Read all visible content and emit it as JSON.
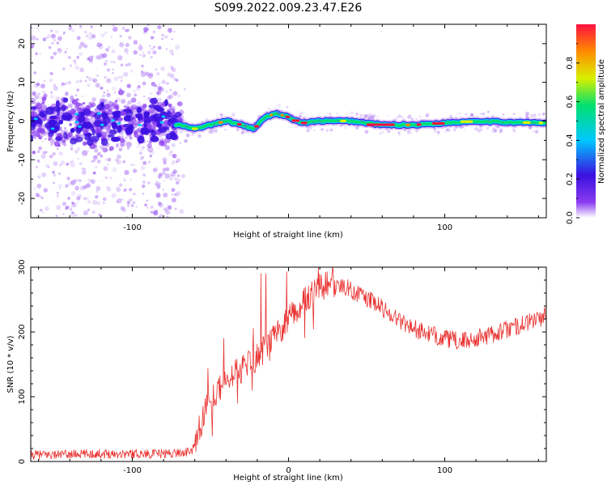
{
  "title": "S099.2022.009.23.47.E26",
  "colors": {
    "snr_line": "#e8312f",
    "noise_purple": "#8a3cf0",
    "blob_blue": "#3b10e0",
    "axis": "#000000"
  },
  "chart_data": [
    {
      "type": "heatmap",
      "xlabel": "Height of straight line (km)",
      "ylabel": "Frequency (Hz)",
      "xlim": [
        -165,
        165
      ],
      "ylim": [
        -25,
        25
      ],
      "xticks": [
        -100,
        0,
        100
      ],
      "xtick_labels": [
        "-100",
        "",
        "100"
      ],
      "yticks": [
        -20,
        -10,
        0,
        10,
        20
      ],
      "ytick_labels": [
        "-20",
        "-10",
        "0",
        "10",
        "20"
      ],
      "colorscale": [
        "#8a3cf0",
        "#3b10e0",
        "#00c8ff",
        "#00e070",
        "#d8f000",
        "#ff8c00",
        "#ff1040"
      ],
      "colorbar": {
        "label": "Normalized spectral amplitude",
        "range": [
          0,
          1
        ],
        "ticks": [
          0.0,
          0.2,
          0.4,
          0.6,
          0.8
        ],
        "tick_labels": [
          "0.0",
          "0.2",
          "0.4",
          "0.6",
          "0.8"
        ]
      },
      "ridge": {
        "x": [
          -70,
          -60,
          -50,
          -40,
          -30,
          -22,
          -15,
          -8,
          0,
          5,
          10,
          20,
          40,
          60,
          80,
          100,
          120,
          140,
          165
        ],
        "y": [
          -1,
          -2,
          -1,
          0,
          -1,
          -2,
          1,
          2,
          1,
          0,
          -0.5,
          0,
          0,
          -1,
          -1,
          -0.5,
          0,
          -0.3,
          -0.5
        ]
      }
    },
    {
      "type": "line",
      "xlabel": "Height of straight line (km)",
      "ylabel": "SNR (10 * v/v)",
      "xlim": [
        -165,
        165
      ],
      "ylim": [
        0,
        300
      ],
      "xticks": [
        -100,
        0,
        100
      ],
      "xtick_labels": [
        "-100",
        "0",
        "100"
      ],
      "yticks": [
        0,
        100,
        200,
        300
      ],
      "ytick_labels": [
        "0",
        "100",
        "200",
        "300"
      ],
      "series": [
        {
          "x": [
            -165,
            -120,
            -80,
            -62,
            -58,
            -52,
            -45,
            -35,
            -25,
            -15,
            -5,
            0,
            10,
            20,
            30,
            40,
            55,
            70,
            85,
            100,
            110,
            120,
            135,
            150,
            165
          ],
          "y": [
            10,
            12,
            12,
            15,
            45,
            85,
            110,
            135,
            150,
            175,
            205,
            220,
            250,
            270,
            275,
            265,
            245,
            220,
            200,
            190,
            185,
            190,
            200,
            212,
            225
          ]
        }
      ]
    }
  ]
}
